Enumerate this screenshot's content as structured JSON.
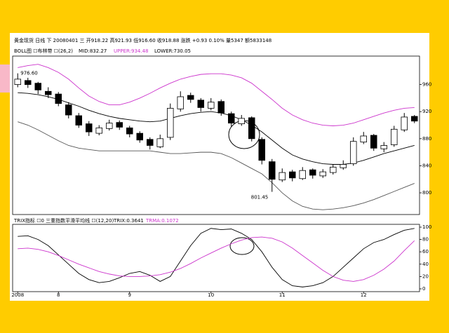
{
  "header": {
    "line1": "黄金现货 日线 下 20080401 三 开918.22 高921.93 低916.60 收918.88 涨跌 +0.93 0.10% 量5347 额5833148",
    "line2_title": "BOLL图 ☐布林带 ☐(26,2)",
    "line2_mid": "MID:832.27",
    "line2_upper": "UPPER:934.48",
    "line2_lower": "LOWER:730.05"
  },
  "chart_data": [
    {
      "type": "candlestick",
      "categories": [
        "2008",
        null,
        null,
        null,
        "8",
        null,
        null,
        null,
        null,
        null,
        null,
        "9",
        null,
        null,
        null,
        null,
        null,
        null,
        null,
        "10",
        null,
        null,
        null,
        null,
        null,
        null,
        "11",
        null,
        null,
        null,
        null,
        null,
        null,
        null,
        "12",
        null,
        null,
        null,
        null,
        null
      ],
      "open": [
        960,
        966,
        962,
        950,
        946,
        930,
        914,
        902,
        888,
        895,
        904,
        896,
        888,
        879,
        868,
        882,
        924,
        944,
        937,
        925,
        935,
        917,
        902,
        911,
        879,
        846,
        819,
        831,
        821,
        834,
        825,
        830,
        837,
        843,
        875,
        885,
        865,
        871,
        893,
        913
      ],
      "high": [
        976.6,
        970,
        964,
        956,
        949,
        934,
        918,
        906,
        900,
        908,
        907,
        899,
        891,
        882,
        886,
        932,
        950,
        948,
        940,
        940,
        938,
        920,
        915,
        913,
        882,
        850,
        836,
        834,
        838,
        836,
        835,
        842,
        848,
        882,
        890,
        887,
        875,
        899,
        918,
        915
      ],
      "low": [
        956,
        955,
        946,
        940,
        928,
        910,
        896,
        884,
        885,
        892,
        893,
        882,
        874,
        864,
        866,
        878,
        920,
        933,
        920,
        922,
        914,
        898,
        899,
        876,
        842,
        801.45,
        816,
        817,
        819,
        821,
        822,
        827,
        834,
        840,
        872,
        862,
        860,
        868,
        890,
        903
      ],
      "close": [
        968,
        960,
        952,
        945,
        932,
        915,
        900,
        890,
        896,
        903,
        897,
        887,
        878,
        870,
        880,
        925,
        942,
        938,
        926,
        934,
        918,
        903,
        910,
        880,
        848,
        820,
        830,
        822,
        833,
        826,
        831,
        838,
        842,
        876,
        884,
        866,
        870,
        894,
        912,
        906
      ],
      "max_label": "976.60",
      "min_label": "801.45",
      "overlays": [
        {
          "color": "#cc33cc",
          "values": [
            985,
            988,
            990,
            985,
            978,
            968,
            955,
            943,
            935,
            930,
            930,
            934,
            940,
            947,
            955,
            962,
            968,
            972,
            975,
            976,
            976,
            974,
            970,
            962,
            950,
            938,
            925,
            915,
            908,
            903,
            900,
            899,
            900,
            903,
            908,
            913,
            918,
            922,
            925,
            926
          ]
        },
        {
          "color": "#000000",
          "values": [
            948,
            947,
            945,
            942,
            938,
            933,
            928,
            922,
            917,
            913,
            910,
            908,
            906,
            905,
            906,
            910,
            914,
            917,
            919,
            920,
            918,
            914,
            908,
            900,
            890,
            878,
            866,
            856,
            850,
            846,
            843,
            842,
            842,
            844,
            848,
            853,
            858,
            862,
            866,
            870
          ]
        },
        {
          "color": "#555555",
          "values": [
            905,
            900,
            893,
            885,
            877,
            870,
            866,
            864,
            862,
            862,
            862,
            862,
            862,
            862,
            860,
            858,
            858,
            859,
            860,
            860,
            858,
            852,
            844,
            836,
            828,
            815,
            800,
            788,
            780,
            776,
            775,
            776,
            778,
            781,
            785,
            790,
            796,
            802,
            808,
            814
          ]
        }
      ],
      "ylim": [
        770,
        1000
      ],
      "yticks": [
        800,
        840,
        880,
        920,
        960
      ]
    },
    {
      "type": "line",
      "title": "TRIX指标 ☐0 三重指数平滑平均线 ☐(12,20)",
      "series": [
        {
          "name": "TRIX:0.3641",
          "color": "#000000",
          "values": [
            85,
            86,
            80,
            70,
            55,
            40,
            25,
            15,
            10,
            12,
            18,
            25,
            28,
            22,
            12,
            20,
            45,
            70,
            90,
            98,
            96,
            97,
            90,
            80,
            60,
            35,
            15,
            5,
            3,
            5,
            10,
            20,
            35,
            50,
            65,
            75,
            80,
            88,
            95,
            98
          ]
        },
        {
          "name": "TRMA:0.1072",
          "color": "#cc33cc",
          "values": [
            65,
            66,
            64,
            60,
            54,
            47,
            40,
            34,
            28,
            24,
            21,
            20,
            20,
            21,
            23,
            27,
            33,
            41,
            50,
            58,
            66,
            73,
            79,
            83,
            84,
            82,
            76,
            66,
            54,
            42,
            30,
            20,
            14,
            12,
            15,
            22,
            32,
            45,
            62,
            78
          ]
        }
      ],
      "ylim": [
        0,
        100
      ],
      "yticks": [
        0,
        20,
        40,
        60,
        80,
        100
      ]
    }
  ]
}
